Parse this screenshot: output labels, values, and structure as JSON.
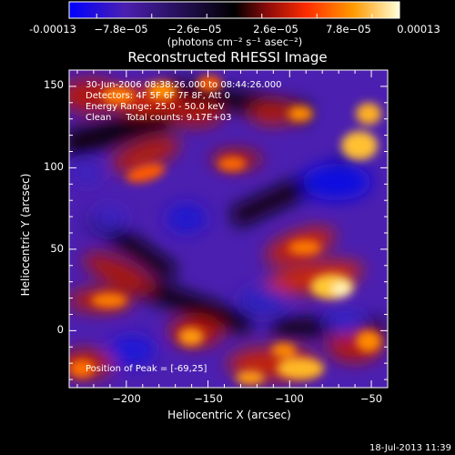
{
  "colorbar": {
    "tick_labels": [
      "-0.00013",
      "−7.8e−05",
      "−2.6e−05",
      "2.6e−05",
      "7.8e−05",
      "0.00013"
    ],
    "unit_label": "(photons cm⁻² s⁻¹ asec⁻²)",
    "colors": [
      "#0000ff",
      "#4b1fb0",
      "#000000",
      "#8c0a0a",
      "#ff2d00",
      "#ff9a00",
      "#ffffd8"
    ]
  },
  "plot": {
    "title": "Reconstructed RHESSI Image",
    "info_lines": [
      "30-Jun-2006 08:38:26.000 to 08:44:26.000",
      "Detectors: 4F 5F 6F 7F 8F, Att 0",
      "Energy Range: 25.0 - 50.0 keV",
      "Clean     Total counts: 9.17E+03"
    ],
    "peak_label": "Position of Peak = [-69,25]"
  },
  "chart_data": {
    "type": "heatmap",
    "title": "Reconstructed RHESSI Image",
    "xlabel": "Heliocentric X (arcsec)",
    "ylabel": "Heliocentric Y (arcsec)",
    "xlim": [
      -235,
      -40
    ],
    "ylim": [
      -35,
      160
    ],
    "x_ticks": [
      -200,
      -150,
      -100,
      -50
    ],
    "y_ticks": [
      0,
      50,
      100,
      150
    ],
    "x_tick_labels": [
      "−200",
      "−150",
      "−100",
      "−50"
    ],
    "y_tick_labels": [
      "0",
      "50",
      "100",
      "150"
    ],
    "color_range": [
      -0.00013,
      0.00013
    ],
    "peak_position": [
      -69,
      25
    ]
  },
  "footer": {
    "timestamp": "18-Jul-2013 11:39"
  }
}
